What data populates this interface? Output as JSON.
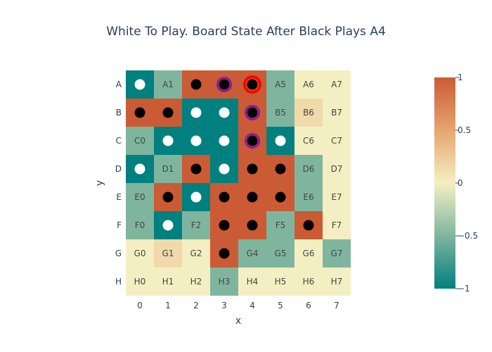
{
  "chart_data": {
    "type": "heatmap",
    "title": "White To Play. Board State After Black Plays A4",
    "xlabel": "x",
    "ylabel": "y",
    "x_ticks": [
      "0",
      "1",
      "2",
      "3",
      "4",
      "5",
      "6",
      "7"
    ],
    "y_ticks": [
      "A",
      "B",
      "C",
      "D",
      "E",
      "F",
      "G",
      "H"
    ],
    "zmin": -1,
    "zmax": 1,
    "colorbar_ticks": [
      {
        "value": 1,
        "label": "1"
      },
      {
        "value": 0.5,
        "label": "0.5"
      },
      {
        "value": 0,
        "label": "0"
      },
      {
        "value": -0.5,
        "label": "−0.5"
      },
      {
        "value": -1,
        "label": "−1"
      }
    ],
    "colorscale": [
      "#00807f",
      "#7fb59f",
      "#f4efc3",
      "#e6a56f",
      "#ca5b35"
    ],
    "z": [
      [
        -1,
        -0.5,
        1,
        1,
        1,
        -0.5,
        0,
        0
      ],
      [
        1,
        1,
        -1,
        -1,
        1,
        -0.5,
        0.15,
        0
      ],
      [
        -0.5,
        -1,
        -1,
        -1,
        1,
        -1,
        0,
        0
      ],
      [
        -1,
        -0.5,
        1,
        -1,
        1,
        1,
        -0.5,
        0
      ],
      [
        -0.5,
        1,
        -1,
        1,
        1,
        1,
        -0.5,
        0
      ],
      [
        -0.5,
        -1,
        -0.5,
        1,
        1,
        -0.5,
        1,
        0
      ],
      [
        0,
        0.15,
        0,
        1,
        -0.5,
        -0.5,
        0,
        -0.5
      ],
      [
        0,
        0,
        0,
        -0.5,
        0,
        0,
        0,
        0
      ]
    ],
    "labels": [
      [
        "",
        "A1",
        "",
        "",
        "",
        "A5",
        "A6",
        "A7"
      ],
      [
        "",
        "",
        "",
        "",
        "",
        "B5",
        "B6",
        "B7"
      ],
      [
        "C0",
        "",
        "",
        "",
        "",
        "",
        "C6",
        "C7"
      ],
      [
        "",
        "D1",
        "",
        "",
        "",
        "",
        "D6",
        "D7"
      ],
      [
        "E0",
        "",
        "",
        "",
        "",
        "",
        "E6",
        "E7"
      ],
      [
        "F0",
        "",
        "F2",
        "",
        "",
        "F5",
        "",
        "F7"
      ],
      [
        "G0",
        "G1",
        "G2",
        "",
        "G4",
        "G5",
        "G6",
        "G7"
      ],
      [
        "H0",
        "H1",
        "H2",
        "H3",
        "H4",
        "H5",
        "H6",
        "H7"
      ]
    ],
    "stones": [
      {
        "row": 0,
        "col": 0,
        "color": "white"
      },
      {
        "row": 0,
        "col": 2,
        "color": "black"
      },
      {
        "row": 0,
        "col": 3,
        "color": "black",
        "highlight": "purple"
      },
      {
        "row": 0,
        "col": 4,
        "color": "black",
        "highlight": "red"
      },
      {
        "row": 1,
        "col": 0,
        "color": "black"
      },
      {
        "row": 1,
        "col": 1,
        "color": "black"
      },
      {
        "row": 1,
        "col": 2,
        "color": "white"
      },
      {
        "row": 1,
        "col": 3,
        "color": "white"
      },
      {
        "row": 1,
        "col": 4,
        "color": "black",
        "highlight": "purple"
      },
      {
        "row": 2,
        "col": 1,
        "color": "white"
      },
      {
        "row": 2,
        "col": 2,
        "color": "white"
      },
      {
        "row": 2,
        "col": 3,
        "color": "white"
      },
      {
        "row": 2,
        "col": 4,
        "color": "black",
        "highlight": "purple"
      },
      {
        "row": 2,
        "col": 5,
        "color": "white"
      },
      {
        "row": 3,
        "col": 0,
        "color": "white"
      },
      {
        "row": 3,
        "col": 2,
        "color": "black"
      },
      {
        "row": 3,
        "col": 3,
        "color": "white"
      },
      {
        "row": 3,
        "col": 4,
        "color": "black"
      },
      {
        "row": 3,
        "col": 5,
        "color": "black"
      },
      {
        "row": 4,
        "col": 1,
        "color": "black"
      },
      {
        "row": 4,
        "col": 2,
        "color": "white"
      },
      {
        "row": 4,
        "col": 3,
        "color": "black"
      },
      {
        "row": 4,
        "col": 4,
        "color": "black"
      },
      {
        "row": 4,
        "col": 5,
        "color": "black"
      },
      {
        "row": 5,
        "col": 1,
        "color": "white"
      },
      {
        "row": 5,
        "col": 3,
        "color": "black"
      },
      {
        "row": 5,
        "col": 4,
        "color": "black"
      },
      {
        "row": 5,
        "col": 6,
        "color": "black"
      },
      {
        "row": 6,
        "col": 3,
        "color": "black"
      }
    ],
    "highlight_colors": {
      "purple": "#8b1a9b",
      "red": "#ff0000"
    },
    "stone_colors": {
      "black": "#000000",
      "white": "#ffffff"
    }
  }
}
